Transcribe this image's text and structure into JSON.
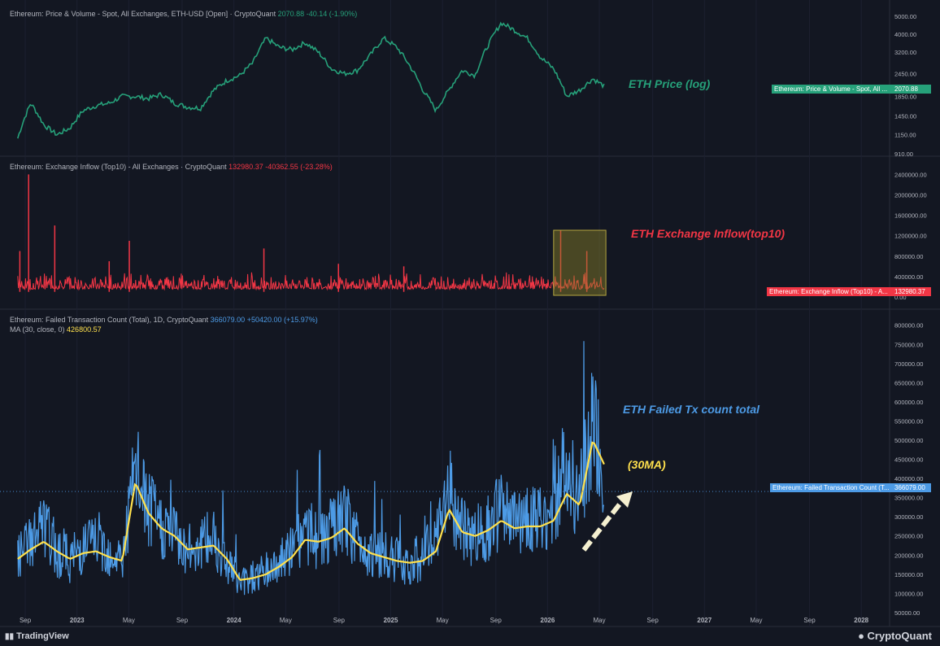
{
  "chart_data": [
    {
      "type": "line",
      "title": "Ethereum: Price & Volume - Spot, All Exchanges, ETH-USD [Open] · CryptoQuant",
      "last_value": "2070.88",
      "change": "-40.14 (-1.90%)",
      "annotation": "ETH Price (log)",
      "series_badge": "Ethereum: Price & Volume - Spot, All ...",
      "y_scale": "log",
      "y_ticks": [
        "5000.00",
        "4000.00",
        "3200.00",
        "2450.00",
        "1850.00",
        "1450.00",
        "1150.00",
        "910.00"
      ],
      "series": [
        {
          "name": "ETH price",
          "color": "#26a17a",
          "x": [
            "2022-08",
            "2022-09",
            "2022-10",
            "2022-11",
            "2022-12",
            "2023-01",
            "2023-02",
            "2023-03",
            "2023-04",
            "2023-05",
            "2023-06",
            "2023-07",
            "2023-08",
            "2023-09",
            "2023-10",
            "2023-11",
            "2023-12",
            "2024-01",
            "2024-02",
            "2024-03",
            "2024-04",
            "2024-05",
            "2024-06",
            "2024-07",
            "2024-08",
            "2024-09",
            "2024-10",
            "2024-11",
            "2024-12",
            "2025-01",
            "2025-02",
            "2025-03",
            "2025-04",
            "2025-05",
            "2025-06",
            "2025-07",
            "2025-08",
            "2025-09",
            "2025-10",
            "2025-11",
            "2025-12",
            "2026-01",
            "2026-02",
            "2026-03",
            "2026-04",
            "2026-05"
          ],
          "values": [
            1100,
            1700,
            1300,
            1150,
            1250,
            1550,
            1650,
            1700,
            1850,
            1850,
            1800,
            1900,
            1700,
            1620,
            1600,
            2000,
            2250,
            2400,
            2800,
            3800,
            3400,
            3300,
            3600,
            3200,
            2600,
            2450,
            2550,
            3100,
            3800,
            3400,
            2700,
            2000,
            1550,
            2000,
            2550,
            2400,
            3500,
            4600,
            4200,
            3800,
            3000,
            2600,
            1850,
            2000,
            2300,
            2070
          ]
        }
      ]
    },
    {
      "type": "bar",
      "title": "Ethereum: Exchange Inflow (Top10) - All Exchanges · CryptoQuant",
      "last_value": "132980.37",
      "change": "-40362.55 (-23.28%)",
      "annotation": "ETH Exchange Inflow(top10)",
      "series_badge": "Ethereum: Exchange Inflow (Top10) - A...",
      "y_ticks": [
        "2400000.00",
        "2000000.00",
        "1600000.00",
        "1200000.00",
        "800000.00",
        "400000.00",
        "0.00"
      ],
      "spikes": [
        {
          "x": "2022-08-20",
          "value": 900000
        },
        {
          "x": "2022-09-10",
          "value": 2400000
        },
        {
          "x": "2022-11-10",
          "value": 1400000
        },
        {
          "x": "2023-03-15",
          "value": 700000
        },
        {
          "x": "2023-05-01",
          "value": 1100000
        },
        {
          "x": "2024-03-10",
          "value": 950000
        },
        {
          "x": "2024-09-01",
          "value": 650000
        },
        {
          "x": "2025-02-01",
          "value": 600000
        },
        {
          "x": "2026-02-01",
          "value": 1300000
        },
        {
          "x": "2026-04-01",
          "value": 900000
        }
      ],
      "highlight": {
        "from": "2026-01",
        "to": "2026-05"
      }
    },
    {
      "type": "line",
      "title": "Ethereum: Failed Transaction Count (Total), 1D, CryptoQuant",
      "last_value": "366079.00",
      "change": "+50420.00 (+15.97%)",
      "ma_label": "MA (30, close, 0)",
      "ma_value": "426800.57",
      "annotation": "ETH Failed Tx count total",
      "annotation_ma": "(30MA)",
      "series_badge": "Ethereum: Failed Transaction Count (T...",
      "badge_value": "366079.00",
      "y_ticks": [
        "800000.00",
        "750000.00",
        "700000.00",
        "650000.00",
        "600000.00",
        "550000.00",
        "500000.00",
        "450000.00",
        "400000.00",
        "350000.00",
        "300000.00",
        "250000.00",
        "200000.00",
        "150000.00",
        "100000.00",
        "50000.00"
      ],
      "series": [
        {
          "name": "Failed Transaction Count",
          "color": "#4d9be6",
          "x": [
            "2022-08",
            "2022-09",
            "2022-10",
            "2022-11",
            "2022-12",
            "2023-01",
            "2023-02",
            "2023-03",
            "2023-04",
            "2023-05",
            "2023-06",
            "2023-07",
            "2023-08",
            "2023-09",
            "2023-10",
            "2023-11",
            "2023-12",
            "2024-01",
            "2024-02",
            "2024-03",
            "2024-04",
            "2024-05",
            "2024-06",
            "2024-07",
            "2024-08",
            "2024-09",
            "2024-10",
            "2024-11",
            "2024-12",
            "2025-01",
            "2025-02",
            "2025-03",
            "2025-04",
            "2025-05",
            "2025-06",
            "2025-07",
            "2025-08",
            "2025-09",
            "2025-10",
            "2025-11",
            "2025-12",
            "2026-01",
            "2026-02",
            "2026-03",
            "2026-04",
            "2026-05"
          ],
          "values": [
            180000,
            230000,
            260000,
            200000,
            180000,
            210000,
            230000,
            200000,
            180000,
            400000,
            300000,
            260000,
            240000,
            200000,
            220000,
            230000,
            180000,
            120000,
            140000,
            150000,
            170000,
            200000,
            250000,
            230000,
            250000,
            280000,
            230000,
            200000,
            190000,
            180000,
            170000,
            190000,
            220000,
            350000,
            250000,
            240000,
            260000,
            300000,
            270000,
            290000,
            270000,
            300000,
            420000,
            330000,
            500000,
            366079
          ]
        },
        {
          "name": "MA (30, close, 0)",
          "color": "#ffe14d",
          "x": [
            "2022-08",
            "2022-09",
            "2022-10",
            "2022-11",
            "2022-12",
            "2023-01",
            "2023-02",
            "2023-03",
            "2023-04",
            "2023-05",
            "2023-06",
            "2023-07",
            "2023-08",
            "2023-09",
            "2023-10",
            "2023-11",
            "2023-12",
            "2024-01",
            "2024-02",
            "2024-03",
            "2024-04",
            "2024-05",
            "2024-06",
            "2024-07",
            "2024-08",
            "2024-09",
            "2024-10",
            "2024-11",
            "2024-12",
            "2025-01",
            "2025-02",
            "2025-03",
            "2025-04",
            "2025-05",
            "2025-06",
            "2025-07",
            "2025-08",
            "2025-09",
            "2025-10",
            "2025-11",
            "2025-12",
            "2026-01",
            "2026-02",
            "2026-03",
            "2026-04",
            "2026-05"
          ],
          "values": [
            190000,
            215000,
            235000,
            210000,
            190000,
            205000,
            210000,
            195000,
            185000,
            390000,
            310000,
            270000,
            250000,
            215000,
            220000,
            225000,
            190000,
            135000,
            140000,
            150000,
            170000,
            195000,
            240000,
            235000,
            245000,
            270000,
            230000,
            205000,
            195000,
            185000,
            180000,
            185000,
            210000,
            320000,
            260000,
            250000,
            265000,
            290000,
            270000,
            275000,
            275000,
            290000,
            360000,
            330000,
            500000,
            426801
          ]
        }
      ]
    }
  ],
  "x_axis_labels": [
    "Sep",
    "2023",
    "May",
    "Sep",
    "2024",
    "May",
    "Sep",
    "2025",
    "May",
    "Sep",
    "2026",
    "May",
    "Sep",
    "2027",
    "May",
    "Sep",
    "2028"
  ],
  "branding": {
    "left": "TradingView",
    "right": "CryptoQuant"
  },
  "colors": {
    "price": "#26a17a",
    "inflow": "#f23645",
    "failed": "#4d9be6",
    "ma": "#ffe14d",
    "bg": "#131722"
  }
}
